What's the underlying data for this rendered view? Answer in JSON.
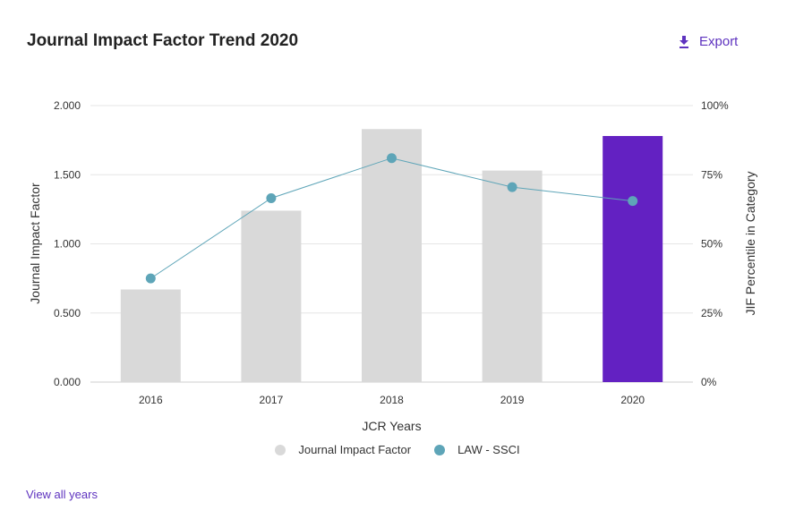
{
  "header": {
    "title": "Journal Impact Factor Trend 2020",
    "export_label": "Export",
    "export_icon": "download-icon"
  },
  "footer": {
    "view_all_label": "View all years"
  },
  "colors": {
    "bar_default": "#d9d9d9",
    "bar_highlight": "#6321c2",
    "line": "#5ea5b8",
    "accent": "#5e33bf"
  },
  "chart_data": {
    "type": "bar",
    "title": "Journal Impact Factor Trend 2020",
    "xlabel": "JCR Years",
    "ylabel": "Journal Impact Factor",
    "y2label": "JIF Percentile in Category",
    "categories": [
      "2016",
      "2017",
      "2018",
      "2019",
      "2020"
    ],
    "ylim": [
      0,
      2
    ],
    "y2lim": [
      0,
      100
    ],
    "yticks": [
      "0.000",
      "0.500",
      "1.000",
      "1.500",
      "2.000"
    ],
    "y2ticks": [
      "0%",
      "25%",
      "50%",
      "75%",
      "100%"
    ],
    "highlight_category": "2020",
    "grid": true,
    "legend_position": "bottom",
    "series": [
      {
        "name": "Journal Impact Factor",
        "type": "bar",
        "axis": "left",
        "values": [
          0.67,
          1.24,
          1.83,
          1.53,
          1.78
        ]
      },
      {
        "name": "LAW - SSCI",
        "type": "line",
        "axis": "right",
        "values": [
          37.5,
          66.5,
          81,
          70.5,
          65.5
        ]
      }
    ]
  }
}
